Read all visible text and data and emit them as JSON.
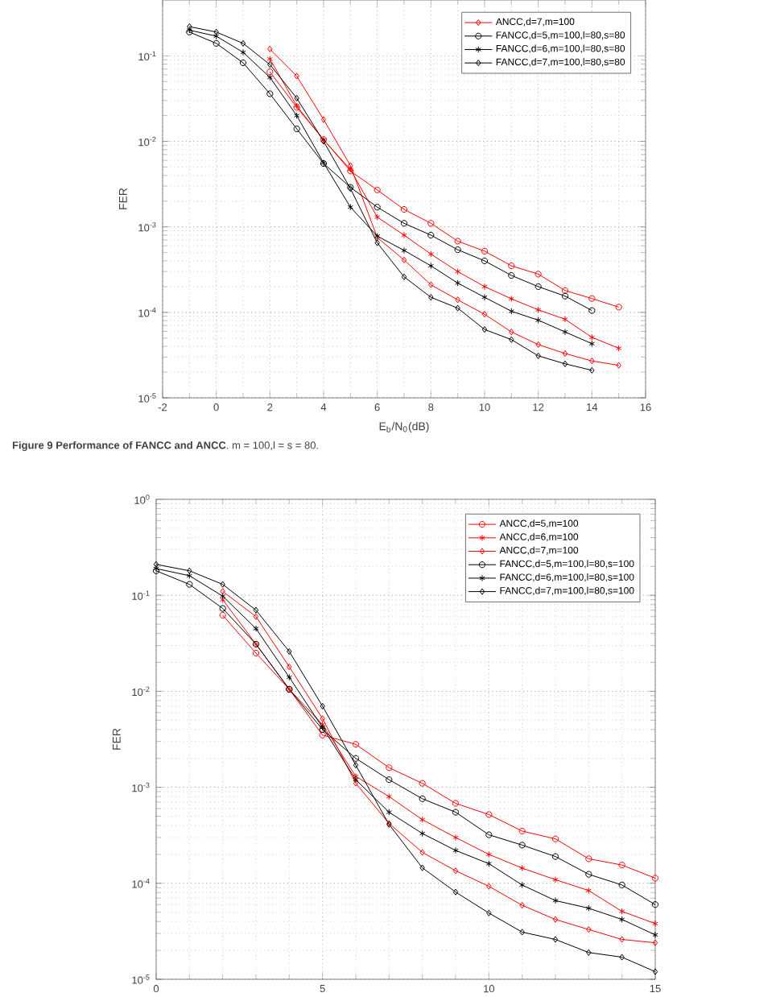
{
  "chart_data": [
    {
      "type": "line",
      "xlabel": "E$_{b}$/N$_{0}$(dB)",
      "ylabel": "FER",
      "log": "y",
      "grid": true,
      "legend": "top right",
      "annotations": [
        "**Figure 9 Performance of FANCC and ANCC**. m = 100,l = s = 80."
      ],
      "xlim": [
        -2,
        16
      ],
      "xticks": [
        -2,
        0,
        2,
        4,
        6,
        8,
        10,
        12,
        14,
        16
      ],
      "ylim": [
        1e-05,
        0.45
      ],
      "yticks": [
        {
          "value": 1e-05,
          "label": "10$^{-5}$"
        },
        {
          "value": 0.0001,
          "label": "10$^{-4}$"
        },
        {
          "value": 0.001,
          "label": "10$^{-3}$"
        },
        {
          "value": 0.01,
          "label": "10$^{-2}$"
        },
        {
          "value": 0.1,
          "label": "10$^{-1}$"
        }
      ],
      "series": [
        {
          "color": "#ff0000",
          "marker": "circle",
          "x": [
            2,
            3,
            4,
            5,
            6,
            7,
            8,
            9,
            10,
            11,
            12,
            13,
            14,
            15
          ],
          "values": [
            0.065,
            0.025,
            0.0105,
            0.0045,
            0.0027,
            0.0016,
            0.0011,
            0.00068,
            0.00052,
            0.00035,
            0.00028,
            0.00018,
            0.000145,
            0.000115
          ]
        },
        {
          "color": "#ff0000",
          "marker": "cross",
          "x": [
            2,
            3,
            4,
            5,
            6,
            7,
            8,
            9,
            10,
            11,
            12,
            13,
            14,
            15
          ],
          "values": [
            0.092,
            0.026,
            0.0104,
            0.0047,
            0.0013,
            0.0008,
            0.00048,
            0.0003,
            0.0002,
            0.000144,
            0.000107,
            8.3e-05,
            5.1e-05,
            3.8e-05
          ]
        },
        {
          "name": "ANCC,d=7,m=100",
          "color": "#ff0000",
          "marker": "diamond",
          "x": [
            2,
            3,
            4,
            5,
            6,
            7,
            8,
            9,
            10,
            11,
            12,
            13,
            14,
            15
          ],
          "values": [
            0.12,
            0.058,
            0.018,
            0.0052,
            0.00075,
            0.00041,
            0.00021,
            0.00014,
            9.5e-05,
            5.9e-05,
            4.2e-05,
            3.3e-05,
            2.7e-05,
            2.4e-05
          ]
        },
        {
          "name": "FANCC,d=5,m=100,l=80,s=80",
          "color": "#000000",
          "marker": "circle",
          "x": [
            -1,
            0,
            1,
            2,
            3,
            4,
            5,
            6,
            7,
            8,
            9,
            10,
            11,
            12,
            13,
            14
          ],
          "values": [
            0.19,
            0.14,
            0.083,
            0.036,
            0.014,
            0.0055,
            0.0029,
            0.0017,
            0.0011,
            0.0008,
            0.00054,
            0.0004,
            0.00027,
            0.0002,
            0.000155,
            0.000105
          ]
        },
        {
          "name": "FANCC,d=6,m=100,l=80,s=80",
          "color": "#000000",
          "marker": "cross",
          "x": [
            -1,
            0,
            1,
            2,
            3,
            4,
            5,
            6,
            7,
            8,
            9,
            10,
            11,
            12,
            13,
            14
          ],
          "values": [
            0.2,
            0.17,
            0.11,
            0.056,
            0.02,
            0.0056,
            0.0017,
            0.00078,
            0.00053,
            0.00035,
            0.00022,
            0.00015,
            0.000103,
            8.1e-05,
            5.9e-05,
            4.3e-05
          ]
        },
        {
          "name": "FANCC,d=7,m=100,l=80,s=80",
          "color": "#000000",
          "marker": "diamond",
          "x": [
            -1,
            0,
            1,
            2,
            3,
            4,
            5,
            6,
            7,
            8,
            9,
            10,
            11,
            12,
            13,
            14
          ],
          "values": [
            0.22,
            0.19,
            0.14,
            0.079,
            0.032,
            0.01,
            0.0028,
            0.00065,
            0.00026,
            0.00015,
            0.000112,
            6.3e-05,
            4.8e-05,
            3.1e-05,
            2.5e-05,
            2.1e-05
          ]
        }
      ]
    },
    {
      "type": "line",
      "ylabel": "FER",
      "log": "y",
      "grid": true,
      "legend": "top right",
      "xlim": [
        0,
        15
      ],
      "xticks": [
        0,
        5,
        10,
        15
      ],
      "ylim": [
        1e-05,
        1
      ],
      "yticks": [
        {
          "value": 1e-05,
          "label": "10$^{-5}$"
        },
        {
          "value": 0.0001,
          "label": "10$^{-4}$"
        },
        {
          "value": 0.001,
          "label": "10$^{-3}$"
        },
        {
          "value": 0.01,
          "label": "10$^{-2}$"
        },
        {
          "value": 0.1,
          "label": "10$^{-1}$"
        },
        {
          "value": 1,
          "label": "10$^{0}$"
        }
      ],
      "series": [
        {
          "name": "ANCC,d=5,m=100",
          "color": "#ff0000",
          "marker": "circle",
          "x": [
            2,
            3,
            4,
            5,
            6,
            7,
            8,
            9,
            10,
            11,
            12,
            13,
            14,
            15
          ],
          "values": [
            0.062,
            0.025,
            0.0105,
            0.0035,
            0.0028,
            0.0016,
            0.0011,
            0.00068,
            0.00052,
            0.00035,
            0.00029,
            0.00018,
            0.000155,
            0.000113
          ]
        },
        {
          "name": "ANCC,d=6,m=100",
          "color": "#ff0000",
          "marker": "cross",
          "x": [
            2,
            3,
            4,
            5,
            6,
            7,
            8,
            9,
            10,
            11,
            12,
            13,
            14,
            15
          ],
          "values": [
            0.09,
            0.031,
            0.0105,
            0.0045,
            0.0013,
            0.0008,
            0.00046,
            0.0003,
            0.0002,
            0.000144,
            0.000109,
            8.4e-05,
            5.1e-05,
            3.8e-05
          ]
        },
        {
          "name": "ANCC,d=7,m=100",
          "color": "#ff0000",
          "marker": "diamond",
          "x": [
            2,
            3,
            4,
            5,
            6,
            7,
            8,
            9,
            10,
            11,
            12,
            13,
            14,
            15
          ],
          "values": [
            0.11,
            0.06,
            0.018,
            0.0052,
            0.0011,
            0.00042,
            0.00021,
            0.000135,
            9.3e-05,
            5.9e-05,
            4.2e-05,
            3.3e-05,
            2.6e-05,
            2.4e-05
          ]
        },
        {
          "name": "FANCC,d=5,m=100,l=80,s=100",
          "color": "#000000",
          "marker": "circle",
          "x": [
            0,
            1,
            2,
            3,
            4,
            5,
            6,
            7,
            8,
            9,
            10,
            11,
            12,
            13,
            14,
            15
          ],
          "values": [
            0.18,
            0.13,
            0.073,
            0.031,
            0.0105,
            0.004,
            0.002,
            0.0012,
            0.00076,
            0.00055,
            0.00032,
            0.00025,
            0.00019,
            0.000124,
            9.6e-05,
            6e-05
          ]
        },
        {
          "name": "FANCC,d=6,m=100,l=80,s=100",
          "color": "#000000",
          "marker": "cross",
          "x": [
            0,
            1,
            2,
            3,
            4,
            5,
            6,
            7,
            8,
            9,
            10,
            11,
            12,
            13,
            14,
            15
          ],
          "values": [
            0.19,
            0.16,
            0.098,
            0.045,
            0.014,
            0.0042,
            0.0012,
            0.00055,
            0.00033,
            0.00022,
            0.00016,
            9.6e-05,
            6.6e-05,
            5.5e-05,
            4.2e-05,
            2.9e-05
          ]
        },
        {
          "name": "FANCC,d=7,m=100,l=80,s=100",
          "color": "#000000",
          "marker": "diamond",
          "x": [
            0,
            1,
            2,
            3,
            4,
            5,
            6,
            7,
            8,
            9,
            10,
            11,
            12,
            13,
            14,
            15
          ],
          "values": [
            0.21,
            0.18,
            0.13,
            0.07,
            0.026,
            0.007,
            0.0017,
            0.00041,
            0.000145,
            8.1e-05,
            4.9e-05,
            3.1e-05,
            2.6e-05,
            1.9e-05,
            1.7e-05,
            1.2e-05
          ]
        }
      ]
    }
  ]
}
